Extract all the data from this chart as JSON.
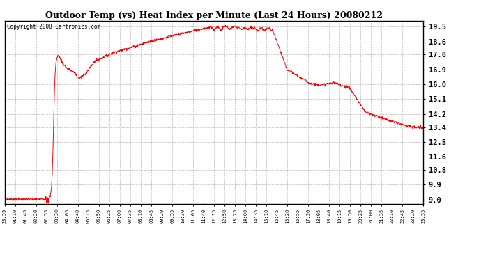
{
  "title": "Outdoor Temp (vs) Heat Index per Minute (Last 24 Hours) 20080212",
  "copyright_text": "Copyright 2008 Cartronics.com",
  "line_color": "#ff0000",
  "background_color": "#ffffff",
  "grid_color": "#bbbbbb",
  "yticks": [
    9.0,
    9.9,
    10.8,
    11.6,
    12.5,
    13.4,
    14.2,
    15.1,
    16.0,
    16.9,
    17.8,
    18.6,
    19.5
  ],
  "ylim": [
    8.75,
    19.85
  ],
  "xtick_labels": [
    "23:59",
    "01:10",
    "01:45",
    "02:20",
    "02:55",
    "03:30",
    "04:05",
    "04:40",
    "05:15",
    "05:50",
    "06:25",
    "07:00",
    "07:35",
    "08:10",
    "08:45",
    "09:20",
    "09:55",
    "10:30",
    "11:05",
    "11:40",
    "12:15",
    "12:50",
    "13:25",
    "14:00",
    "14:35",
    "15:10",
    "15:45",
    "16:20",
    "16:55",
    "17:30",
    "18:05",
    "18:40",
    "19:15",
    "19:50",
    "20:25",
    "21:00",
    "21:35",
    "22:10",
    "22:45",
    "23:20",
    "23:55"
  ],
  "num_points": 1440
}
